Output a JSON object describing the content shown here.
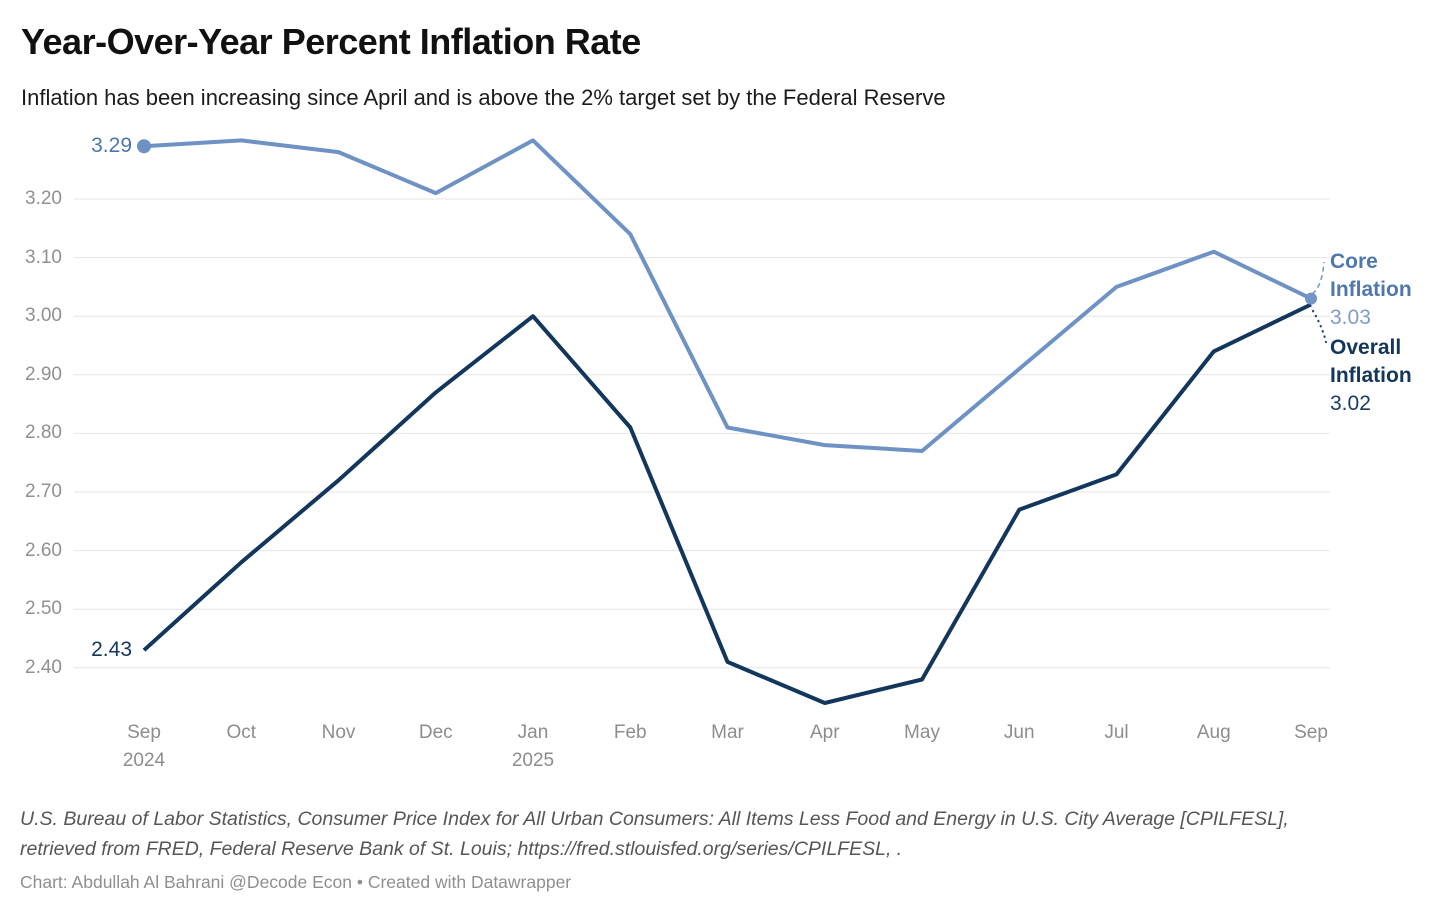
{
  "title": "Year-Over-Year Percent Inflation Rate",
  "subtitle": "Inflation has been increasing since April and is above the 2% target set by the Federal Reserve",
  "chart_data": {
    "type": "line",
    "x_labels": [
      {
        "month": "Sep",
        "year": "2024"
      },
      {
        "month": "Oct",
        "year": ""
      },
      {
        "month": "Nov",
        "year": ""
      },
      {
        "month": "Dec",
        "year": ""
      },
      {
        "month": "Jan",
        "year": "2025"
      },
      {
        "month": "Feb",
        "year": ""
      },
      {
        "month": "Mar",
        "year": ""
      },
      {
        "month": "Apr",
        "year": ""
      },
      {
        "month": "May",
        "year": ""
      },
      {
        "month": "Jun",
        "year": ""
      },
      {
        "month": "Jul",
        "year": ""
      },
      {
        "month": "Aug",
        "year": ""
      },
      {
        "month": "Sep",
        "year": ""
      }
    ],
    "yticks": [
      3.2,
      3.1,
      3.0,
      2.9,
      2.8,
      2.7,
      2.6,
      2.5,
      2.4
    ],
    "ylim": [
      2.28,
      3.34
    ],
    "grid": true,
    "gridline_color": "#e4e4e4",
    "legend_position": "right-annotations",
    "series": [
      {
        "name": "Core Inflation",
        "color": "#6e92c4",
        "values": [
          3.29,
          3.3,
          3.28,
          3.21,
          3.3,
          3.14,
          2.81,
          2.78,
          2.77,
          2.91,
          3.05,
          3.11,
          3.03
        ],
        "first_value_label": "3.29",
        "last_value_label": "3.03",
        "value_label_color": "#4d76ac",
        "annotation_name_color": "#4e78ae",
        "annotation_value_color": "#7f9cc8",
        "markers": true
      },
      {
        "name": "Overall Inflation",
        "color": "#12365c",
        "values": [
          2.43,
          2.58,
          2.72,
          2.87,
          3.0,
          2.81,
          2.41,
          2.34,
          2.38,
          2.67,
          2.73,
          2.94,
          3.02
        ],
        "first_value_label": "2.43",
        "last_value_label": "3.02",
        "value_label_color": "#12365c",
        "annotation_name_color": "#12365c",
        "annotation_value_color": "#1b3c63",
        "markers": false
      }
    ]
  },
  "footer": {
    "source": "U.S. Bureau of Labor Statistics, Consumer Price Index for All Urban Consumers: All Items Less Food and Energy in U.S. City Average [CPILFESL],\nretrieved from FRED, Federal Reserve Bank of St. Louis; https://fred.stlouisfed.org/series/CPILFESL, .",
    "credit": "Chart: Abdullah Al Bahrani @Decode Econ • Created with Datawrapper"
  }
}
